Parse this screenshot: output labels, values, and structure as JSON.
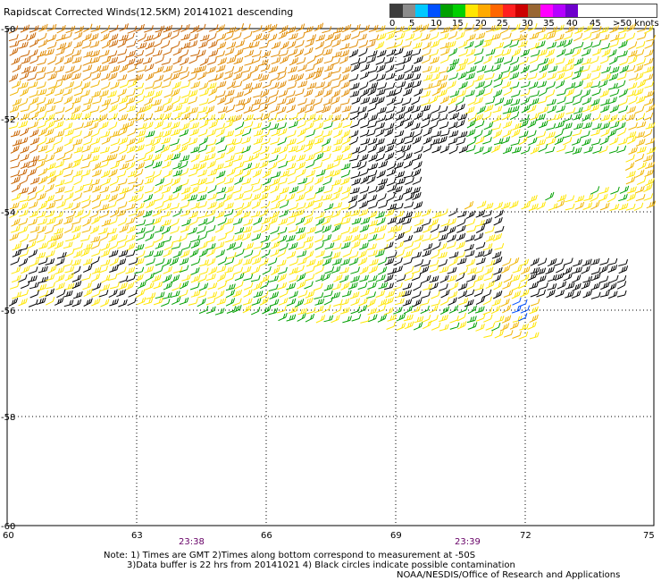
{
  "title": "Rapidscat Corrected Winds(12.5KM) 20141021 descending",
  "legend": {
    "labels": [
      "0",
      "5",
      "10",
      "15",
      "20",
      "25",
      "30",
      "35",
      "40",
      "45",
      ">50 knots"
    ],
    "colors": [
      "#3c3c3c",
      "#8c8c8c",
      "#00c8ff",
      "#0050ff",
      "#00a000",
      "#00d000",
      "#ffe600",
      "#ffaa00",
      "#ff6600",
      "#ff2020",
      "#cc0000",
      "#996633",
      "#ff00ff",
      "#b400ff",
      "#6e00cc"
    ]
  },
  "axes": {
    "lat_labels": [
      "-50",
      "-52",
      "-54",
      "-56",
      "-58",
      "-60"
    ],
    "lon_labels": [
      "60",
      "63",
      "66",
      "69",
      "72",
      "75"
    ]
  },
  "times": [
    "23:38",
    "23:39"
  ],
  "notes": {
    "line1": "Note: 1) Times are GMT 2)Times along bottom correspond to measurement at -50S",
    "line2": "3)Data buffer is 22 hrs from 20141021 4) Black circles indicate possible contamination",
    "line3": "NOAA/NESDIS/Office of Research and Applications"
  },
  "wind_color_key": {
    "black": "#000000",
    "yellow": "#ffe600",
    "gold": "#f0b400",
    "orange": "#e08a00",
    "dark_orange": "#c86400",
    "green": "#00a000",
    "blue": "#0050ff"
  }
}
